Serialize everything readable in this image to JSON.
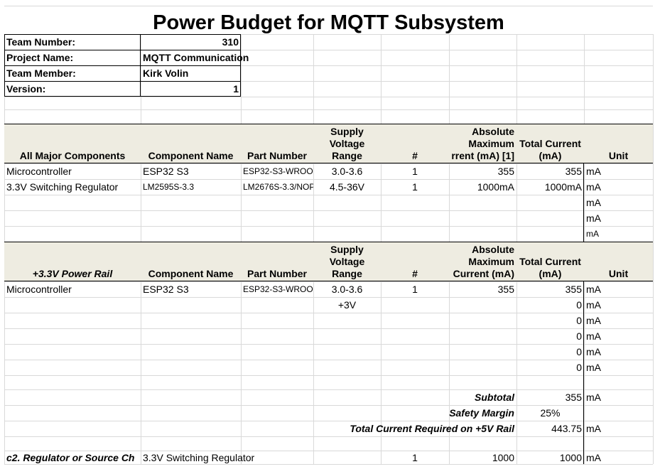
{
  "title": "Power Budget for MQTT Subsystem",
  "info": [
    {
      "label": "Team Number:",
      "value": "310"
    },
    {
      "label": "Project Name:",
      "value": "MQTT Communication"
    },
    {
      "label": "Team Member:",
      "value": "Kirk Volin"
    },
    {
      "label": "Version:",
      "value": "1"
    }
  ],
  "table1": {
    "headers": [
      "All Major Components",
      "Component Name",
      "Part Number",
      "Supply Voltage Range",
      "#",
      "Absolute Maximum rrent (mA) [1]",
      "Total Current (mA)",
      "Unit"
    ],
    "rows": [
      {
        "comp": "Microcontroller",
        "name": "ESP32 S3",
        "part": "ESP32-S3-WROO",
        "volt": "3.0-3.6",
        "num": "1",
        "abs": "355",
        "total": "355",
        "unit": "mA"
      },
      {
        "comp": "3.3V Switching Regulator",
        "name": "LM2595S-3.3",
        "part": "LM2676S-3.3/NOP",
        "volt": "4.5-36V",
        "num": "1",
        "abs": "1000mA",
        "total": "1000mA",
        "unit": "mA"
      },
      {
        "comp": "",
        "name": "",
        "part": "",
        "volt": "",
        "num": "",
        "abs": "",
        "total": "",
        "unit": "mA"
      },
      {
        "comp": "",
        "name": "",
        "part": "",
        "volt": "",
        "num": "",
        "abs": "",
        "total": "",
        "unit": "mA"
      },
      {
        "comp": "",
        "name": "",
        "part": "",
        "volt": "",
        "num": "",
        "abs": "",
        "total": "",
        "unit": "mA"
      }
    ]
  },
  "table2": {
    "headers": [
      "+3.3V Power Rail",
      "Component Name",
      "Part Number",
      "Supply Voltage Range",
      "#",
      "Absolute Maximum Current (mA)",
      "Total Current (mA)",
      "Unit"
    ],
    "rows": [
      {
        "comp": "Microcontroller",
        "name": "ESP32 S3",
        "part": "ESP32-S3-WROO",
        "volt": "3.0-3.6",
        "num": "1",
        "abs": "355",
        "total": "355",
        "unit": "mA"
      },
      {
        "comp": "",
        "name": "",
        "part": "",
        "volt": "+3V",
        "num": "",
        "abs": "",
        "total": "0",
        "unit": "mA"
      },
      {
        "comp": "",
        "name": "",
        "part": "",
        "volt": "",
        "num": "",
        "abs": "",
        "total": "0",
        "unit": "mA"
      },
      {
        "comp": "",
        "name": "",
        "part": "",
        "volt": "",
        "num": "",
        "abs": "",
        "total": "0",
        "unit": "mA"
      },
      {
        "comp": "",
        "name": "",
        "part": "",
        "volt": "",
        "num": "",
        "abs": "",
        "total": "0",
        "unit": "mA"
      },
      {
        "comp": "",
        "name": "",
        "part": "",
        "volt": "",
        "num": "",
        "abs": "",
        "total": "0",
        "unit": "mA"
      }
    ]
  },
  "summary": [
    {
      "label": "Subtotal",
      "value": "355",
      "unit": "mA"
    },
    {
      "label": "Safety Margin",
      "value": "25%",
      "unit": ""
    },
    {
      "label": "Total Current Required on +5V Rail",
      "value": "443.75",
      "unit": "mA"
    }
  ],
  "regulator": {
    "label": "c2. Regulator or Source Ch",
    "name": "3.3V Switching Regulator",
    "num": "1",
    "abs": "1000",
    "total": "1000",
    "unit": "mA"
  }
}
